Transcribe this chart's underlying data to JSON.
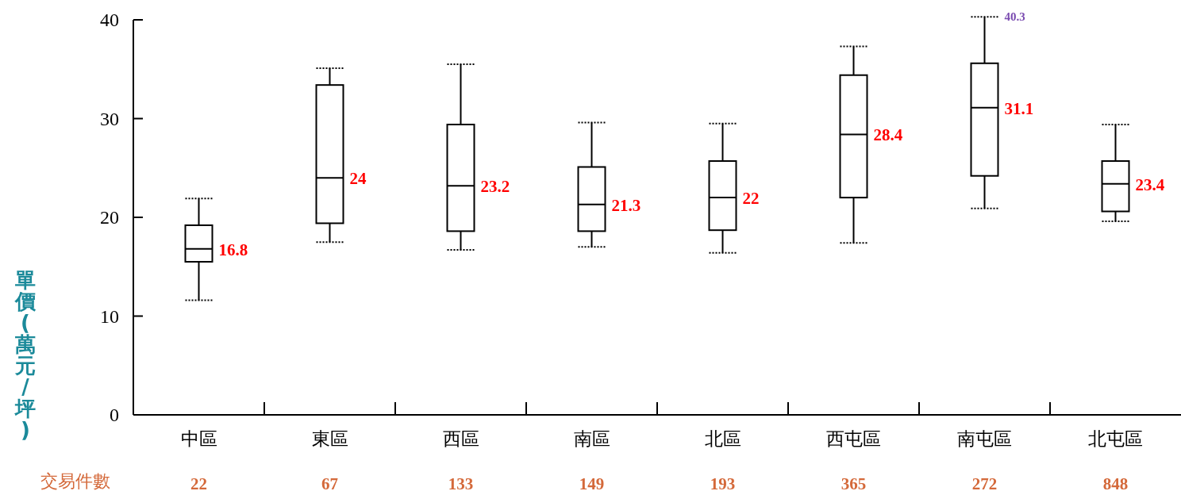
{
  "chart_data": {
    "type": "box",
    "ylabel": "單價(萬元/坪)",
    "categories": [
      "中區",
      "東區",
      "西區",
      "南區",
      "北區",
      "西屯區",
      "南屯區",
      "北屯區"
    ],
    "boxes": [
      {
        "low": 11.6,
        "q1": 15.5,
        "median": 16.8,
        "q3": 19.2,
        "high": 21.9
      },
      {
        "low": 17.5,
        "q1": 19.4,
        "median": 24,
        "q3": 33.4,
        "high": 35.1
      },
      {
        "low": 16.7,
        "q1": 18.6,
        "median": 23.2,
        "q3": 29.4,
        "high": 35.5
      },
      {
        "low": 17.0,
        "q1": 18.6,
        "median": 21.3,
        "q3": 25.1,
        "high": 29.6
      },
      {
        "low": 16.4,
        "q1": 18.7,
        "median": 22,
        "q3": 25.7,
        "high": 29.5
      },
      {
        "low": 17.4,
        "q1": 22.0,
        "median": 28.4,
        "q3": 34.4,
        "high": 37.3
      },
      {
        "low": 20.9,
        "q1": 24.2,
        "median": 31.1,
        "q3": 35.6,
        "high": 40.3
      },
      {
        "low": 19.6,
        "q1": 20.6,
        "median": 23.4,
        "q3": 25.7,
        "high": 29.4
      }
    ],
    "ylim": [
      0,
      40
    ],
    "yticks": [
      0,
      10,
      20,
      30,
      40
    ],
    "grid": false,
    "annotations": [
      {
        "text": "16.8",
        "x": "中區",
        "y": 16.8
      },
      {
        "text": "24",
        "x": "東區",
        "y": 24
      },
      {
        "text": "23.2",
        "x": "西區",
        "y": 23.2
      },
      {
        "text": "21.3",
        "x": "南區",
        "y": 21.3
      },
      {
        "text": "22",
        "x": "北區",
        "y": 22
      },
      {
        "text": "28.4",
        "x": "西屯區",
        "y": 28.4
      },
      {
        "text": "31.1",
        "x": "南屯區",
        "y": 31.1
      },
      {
        "text": "23.4",
        "x": "北屯區",
        "y": 23.4
      },
      {
        "text": "40.3",
        "x": "南屯區",
        "y": 40.3
      },
      "交易件數",
      "22",
      "67",
      "133",
      "149",
      "193",
      "365",
      "272",
      "848"
    ]
  }
}
